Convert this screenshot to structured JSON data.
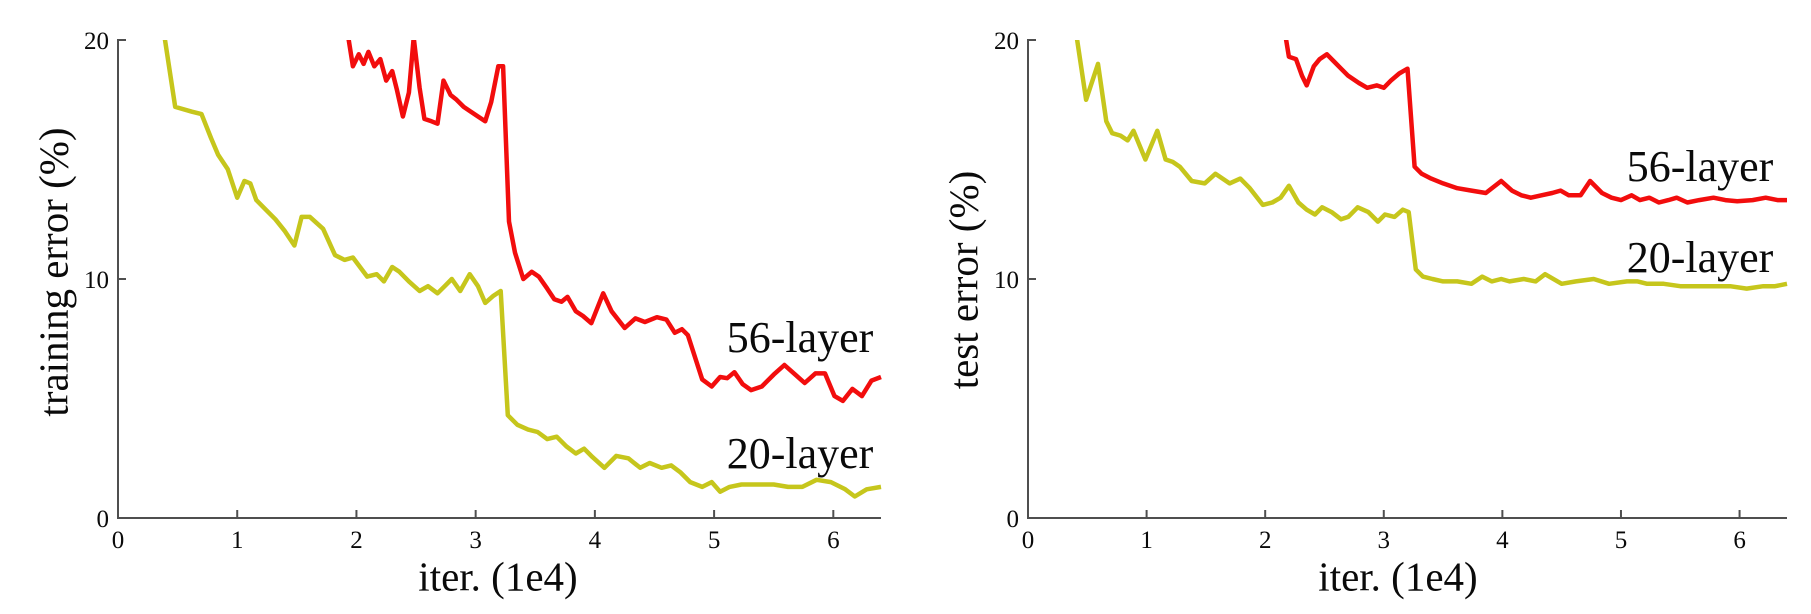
{
  "figure": {
    "background": "#ffffff",
    "axis_color": "#4f4f4f",
    "text_color": "#0a0a0a"
  },
  "chart_data": [
    {
      "type": "line",
      "panel": "left",
      "title": "",
      "xlabel": "iter. (1e4)",
      "ylabel": "training error (%)",
      "xlim": [
        0,
        6.4
      ],
      "ylim": [
        0,
        20
      ],
      "xticks": [
        0,
        1,
        2,
        3,
        4,
        5,
        6
      ],
      "yticks": [
        0,
        10,
        20
      ],
      "grid": false,
      "legend_position": "inline-annotations",
      "series": [
        {
          "name": "56-layer",
          "color": "#f20d0d",
          "points": [
            [
              1.91,
              20.8
            ],
            [
              1.97,
              18.9
            ],
            [
              2.02,
              19.4
            ],
            [
              2.06,
              19.0
            ],
            [
              2.1,
              19.5
            ],
            [
              2.15,
              18.9
            ],
            [
              2.2,
              19.2
            ],
            [
              2.25,
              18.3
            ],
            [
              2.3,
              18.7
            ],
            [
              2.34,
              17.9
            ],
            [
              2.39,
              16.8
            ],
            [
              2.44,
              17.8
            ],
            [
              2.48,
              20.1
            ],
            [
              2.53,
              18.0
            ],
            [
              2.57,
              16.7
            ],
            [
              2.63,
              16.6
            ],
            [
              2.68,
              16.5
            ],
            [
              2.73,
              18.3
            ],
            [
              2.79,
              17.7
            ],
            [
              2.84,
              17.5
            ],
            [
              2.9,
              17.2
            ],
            [
              2.96,
              17.0
            ],
            [
              3.02,
              16.8
            ],
            [
              3.08,
              16.6
            ],
            [
              3.13,
              17.4
            ],
            [
              3.19,
              18.9
            ],
            [
              3.23,
              18.9
            ],
            [
              3.28,
              12.4
            ],
            [
              3.33,
              11.1
            ],
            [
              3.4,
              10.0
            ],
            [
              3.47,
              10.3
            ],
            [
              3.53,
              10.1
            ],
            [
              3.6,
              9.6
            ],
            [
              3.66,
              9.15
            ],
            [
              3.72,
              9.05
            ],
            [
              3.77,
              9.25
            ],
            [
              3.84,
              8.65
            ],
            [
              3.9,
              8.45
            ],
            [
              3.97,
              8.15
            ],
            [
              4.07,
              9.4
            ],
            [
              4.14,
              8.65
            ],
            [
              4.25,
              7.95
            ],
            [
              4.34,
              8.35
            ],
            [
              4.42,
              8.2
            ],
            [
              4.52,
              8.4
            ],
            [
              4.6,
              8.3
            ],
            [
              4.67,
              7.75
            ],
            [
              4.73,
              7.9
            ],
            [
              4.78,
              7.65
            ],
            [
              4.9,
              5.8
            ],
            [
              4.98,
              5.5
            ],
            [
              5.05,
              5.9
            ],
            [
              5.11,
              5.85
            ],
            [
              5.17,
              6.1
            ],
            [
              5.24,
              5.6
            ],
            [
              5.31,
              5.35
            ],
            [
              5.4,
              5.5
            ],
            [
              5.5,
              6.0
            ],
            [
              5.59,
              6.4
            ],
            [
              5.68,
              6.0
            ],
            [
              5.76,
              5.65
            ],
            [
              5.85,
              6.05
            ],
            [
              5.93,
              6.05
            ],
            [
              6.01,
              5.1
            ],
            [
              6.08,
              4.9
            ],
            [
              6.16,
              5.4
            ],
            [
              6.24,
              5.1
            ],
            [
              6.32,
              5.75
            ],
            [
              6.4,
              5.9
            ]
          ]
        },
        {
          "name": "20-layer",
          "color": "#c6c61c",
          "points": [
            [
              0.37,
              20.8
            ],
            [
              0.48,
              17.2
            ],
            [
              0.62,
              17.0
            ],
            [
              0.7,
              16.9
            ],
            [
              0.78,
              15.9
            ],
            [
              0.84,
              15.2
            ],
            [
              0.92,
              14.6
            ],
            [
              1.0,
              13.4
            ],
            [
              1.06,
              14.1
            ],
            [
              1.11,
              14.0
            ],
            [
              1.16,
              13.3
            ],
            [
              1.24,
              12.9
            ],
            [
              1.32,
              12.5
            ],
            [
              1.4,
              12.0
            ],
            [
              1.48,
              11.4
            ],
            [
              1.54,
              12.6
            ],
            [
              1.61,
              12.6
            ],
            [
              1.72,
              12.1
            ],
            [
              1.82,
              11.0
            ],
            [
              1.9,
              10.8
            ],
            [
              1.97,
              10.9
            ],
            [
              2.03,
              10.5
            ],
            [
              2.09,
              10.1
            ],
            [
              2.17,
              10.2
            ],
            [
              2.23,
              9.9
            ],
            [
              2.3,
              10.5
            ],
            [
              2.36,
              10.3
            ],
            [
              2.44,
              9.9
            ],
            [
              2.53,
              9.5
            ],
            [
              2.6,
              9.7
            ],
            [
              2.68,
              9.4
            ],
            [
              2.74,
              9.7
            ],
            [
              2.8,
              10.0
            ],
            [
              2.87,
              9.5
            ],
            [
              2.95,
              10.2
            ],
            [
              3.02,
              9.7
            ],
            [
              3.08,
              9.0
            ],
            [
              3.15,
              9.3
            ],
            [
              3.21,
              9.5
            ],
            [
              3.27,
              4.3
            ],
            [
              3.35,
              3.9
            ],
            [
              3.44,
              3.7
            ],
            [
              3.52,
              3.6
            ],
            [
              3.6,
              3.3
            ],
            [
              3.68,
              3.4
            ],
            [
              3.76,
              3.0
            ],
            [
              3.84,
              2.7
            ],
            [
              3.91,
              2.9
            ],
            [
              3.98,
              2.55
            ],
            [
              4.08,
              2.1
            ],
            [
              4.18,
              2.6
            ],
            [
              4.28,
              2.5
            ],
            [
              4.38,
              2.1
            ],
            [
              4.46,
              2.3
            ],
            [
              4.56,
              2.1
            ],
            [
              4.64,
              2.2
            ],
            [
              4.72,
              1.9
            ],
            [
              4.8,
              1.5
            ],
            [
              4.9,
              1.3
            ],
            [
              4.98,
              1.5
            ],
            [
              5.05,
              1.1
            ],
            [
              5.13,
              1.3
            ],
            [
              5.23,
              1.4
            ],
            [
              5.36,
              1.4
            ],
            [
              5.5,
              1.4
            ],
            [
              5.62,
              1.3
            ],
            [
              5.74,
              1.3
            ],
            [
              5.86,
              1.6
            ],
            [
              5.98,
              1.5
            ],
            [
              6.1,
              1.2
            ],
            [
              6.18,
              0.9
            ],
            [
              6.28,
              1.2
            ],
            [
              6.4,
              1.3
            ]
          ]
        }
      ]
    },
    {
      "type": "line",
      "panel": "right",
      "title": "",
      "xlabel": "iter. (1e4)",
      "ylabel": "test error (%)",
      "xlim": [
        0,
        6.4
      ],
      "ylim": [
        0,
        20
      ],
      "xticks": [
        0,
        1,
        2,
        3,
        4,
        5,
        6
      ],
      "yticks": [
        0,
        10,
        20
      ],
      "grid": false,
      "legend_position": "inline-annotations",
      "series": [
        {
          "name": "56-layer",
          "color": "#f20d0d",
          "points": [
            [
              2.15,
              20.8
            ],
            [
              2.2,
              19.3
            ],
            [
              2.26,
              19.2
            ],
            [
              2.31,
              18.5
            ],
            [
              2.35,
              18.1
            ],
            [
              2.41,
              18.9
            ],
            [
              2.46,
              19.2
            ],
            [
              2.52,
              19.4
            ],
            [
              2.58,
              19.1
            ],
            [
              2.64,
              18.8
            ],
            [
              2.7,
              18.5
            ],
            [
              2.79,
              18.2
            ],
            [
              2.86,
              18.0
            ],
            [
              2.94,
              18.1
            ],
            [
              3.0,
              18.0
            ],
            [
              3.06,
              18.3
            ],
            [
              3.13,
              18.6
            ],
            [
              3.2,
              18.8
            ],
            [
              3.26,
              14.7
            ],
            [
              3.32,
              14.4
            ],
            [
              3.4,
              14.2
            ],
            [
              3.5,
              14.0
            ],
            [
              3.62,
              13.8
            ],
            [
              3.74,
              13.7
            ],
            [
              3.86,
              13.6
            ],
            [
              3.99,
              14.1
            ],
            [
              4.08,
              13.7
            ],
            [
              4.16,
              13.5
            ],
            [
              4.24,
              13.4
            ],
            [
              4.33,
              13.5
            ],
            [
              4.42,
              13.6
            ],
            [
              4.49,
              13.7
            ],
            [
              4.56,
              13.5
            ],
            [
              4.66,
              13.5
            ],
            [
              4.74,
              14.1
            ],
            [
              4.84,
              13.6
            ],
            [
              4.92,
              13.4
            ],
            [
              5.0,
              13.3
            ],
            [
              5.09,
              13.5
            ],
            [
              5.16,
              13.3
            ],
            [
              5.24,
              13.4
            ],
            [
              5.32,
              13.2
            ],
            [
              5.4,
              13.3
            ],
            [
              5.47,
              13.4
            ],
            [
              5.56,
              13.2
            ],
            [
              5.66,
              13.3
            ],
            [
              5.78,
              13.4
            ],
            [
              5.88,
              13.3
            ],
            [
              5.98,
              13.25
            ],
            [
              6.11,
              13.3
            ],
            [
              6.22,
              13.4
            ],
            [
              6.32,
              13.3
            ],
            [
              6.4,
              13.3
            ]
          ]
        },
        {
          "name": "20-layer",
          "color": "#c6c61c",
          "points": [
            [
              0.39,
              20.8
            ],
            [
              0.49,
              17.5
            ],
            [
              0.59,
              19.0
            ],
            [
              0.66,
              16.6
            ],
            [
              0.71,
              16.1
            ],
            [
              0.78,
              16.0
            ],
            [
              0.84,
              15.8
            ],
            [
              0.89,
              16.2
            ],
            [
              0.99,
              15.0
            ],
            [
              1.09,
              16.2
            ],
            [
              1.16,
              15.0
            ],
            [
              1.22,
              14.9
            ],
            [
              1.28,
              14.7
            ],
            [
              1.38,
              14.1
            ],
            [
              1.49,
              14.0
            ],
            [
              1.58,
              14.4
            ],
            [
              1.7,
              14.0
            ],
            [
              1.79,
              14.2
            ],
            [
              1.87,
              13.8
            ],
            [
              1.98,
              13.1
            ],
            [
              2.06,
              13.2
            ],
            [
              2.13,
              13.4
            ],
            [
              2.2,
              13.9
            ],
            [
              2.28,
              13.2
            ],
            [
              2.35,
              12.9
            ],
            [
              2.42,
              12.7
            ],
            [
              2.48,
              13.0
            ],
            [
              2.56,
              12.8
            ],
            [
              2.64,
              12.5
            ],
            [
              2.7,
              12.6
            ],
            [
              2.78,
              13.0
            ],
            [
              2.87,
              12.8
            ],
            [
              2.95,
              12.4
            ],
            [
              3.01,
              12.7
            ],
            [
              3.09,
              12.6
            ],
            [
              3.16,
              12.9
            ],
            [
              3.21,
              12.8
            ],
            [
              3.27,
              10.4
            ],
            [
              3.33,
              10.1
            ],
            [
              3.41,
              10.0
            ],
            [
              3.5,
              9.9
            ],
            [
              3.62,
              9.9
            ],
            [
              3.74,
              9.8
            ],
            [
              3.83,
              10.1
            ],
            [
              3.91,
              9.9
            ],
            [
              3.99,
              10.0
            ],
            [
              4.06,
              9.9
            ],
            [
              4.18,
              10.0
            ],
            [
              4.28,
              9.9
            ],
            [
              4.36,
              10.2
            ],
            [
              4.5,
              9.8
            ],
            [
              4.62,
              9.9
            ],
            [
              4.77,
              10.0
            ],
            [
              4.9,
              9.8
            ],
            [
              5.05,
              9.9
            ],
            [
              5.14,
              9.9
            ],
            [
              5.22,
              9.8
            ],
            [
              5.36,
              9.8
            ],
            [
              5.5,
              9.7
            ],
            [
              5.64,
              9.7
            ],
            [
              5.78,
              9.7
            ],
            [
              5.92,
              9.7
            ],
            [
              6.06,
              9.6
            ],
            [
              6.2,
              9.7
            ],
            [
              6.3,
              9.7
            ],
            [
              6.4,
              9.8
            ]
          ]
        }
      ]
    }
  ]
}
